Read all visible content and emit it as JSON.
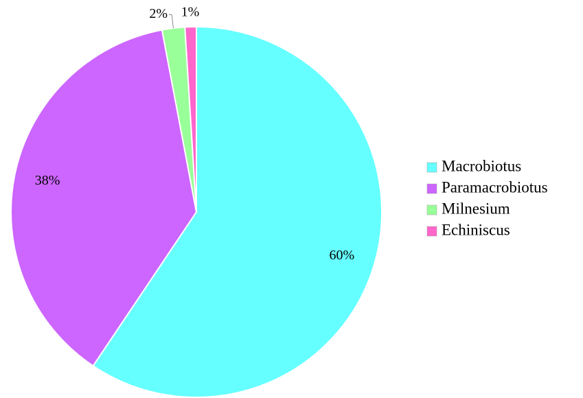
{
  "chart_data": {
    "type": "pie",
    "categories": [
      "Macrobiotus",
      "Paramacrobiotus",
      "Milnesium",
      "Echiniscus"
    ],
    "values": [
      60,
      38,
      2,
      1
    ],
    "value_labels": [
      "60%",
      "38%",
      "2%",
      "1%"
    ],
    "colors": [
      "#66ffff",
      "#cc66ff",
      "#99ff99",
      "#ff66cc"
    ],
    "legend": "right"
  }
}
